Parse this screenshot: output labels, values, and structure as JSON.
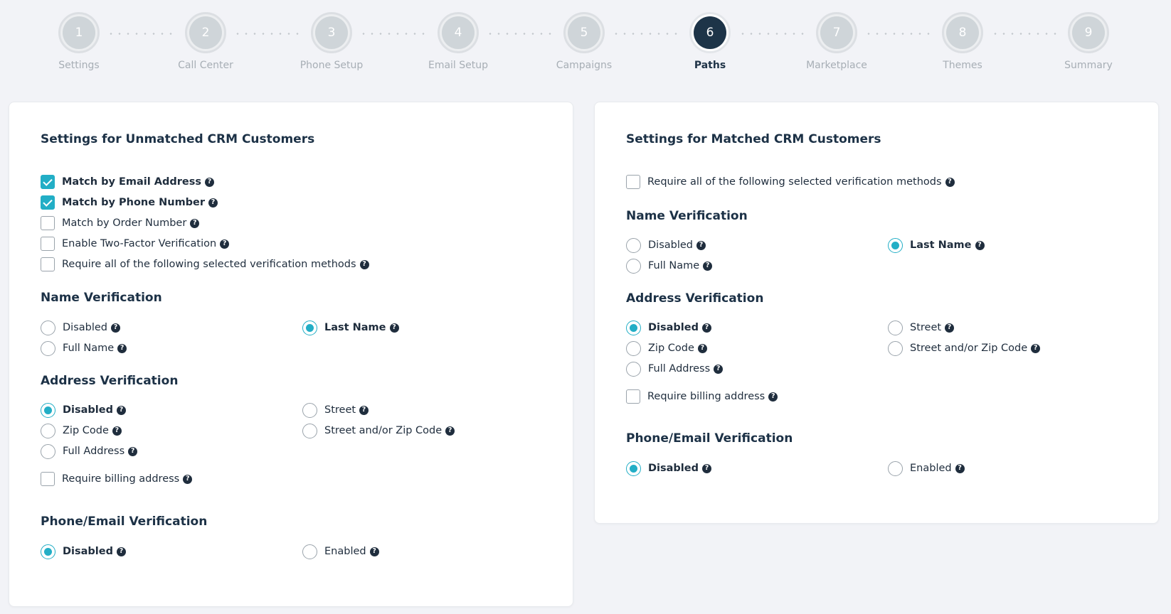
{
  "stepper": {
    "steps": [
      {
        "number": "1",
        "label": "Settings"
      },
      {
        "number": "2",
        "label": "Call Center"
      },
      {
        "number": "3",
        "label": "Phone Setup"
      },
      {
        "number": "4",
        "label": "Email Setup"
      },
      {
        "number": "5",
        "label": "Campaigns"
      },
      {
        "number": "6",
        "label": "Paths"
      },
      {
        "number": "7",
        "label": "Marketplace"
      },
      {
        "number": "8",
        "label": "Themes"
      },
      {
        "number": "9",
        "label": "Summary"
      }
    ],
    "active_step": 6
  },
  "help_glyph": "?",
  "colors": {
    "accent": "#22aec6",
    "active_step": "#1d3448",
    "background": "#f2f3f7"
  },
  "unmatched": {
    "title": "Settings for Unmatched CRM Customers",
    "match_options": [
      {
        "label": "Match by Email Address",
        "checked": true
      },
      {
        "label": "Match by Phone Number",
        "checked": true
      },
      {
        "label": "Match by Order Number",
        "checked": false
      },
      {
        "label": "Enable Two-Factor Verification",
        "checked": false
      },
      {
        "label": "Require all of the following selected verification methods",
        "checked": false
      }
    ],
    "name_verification": {
      "title": "Name Verification",
      "options": [
        {
          "label": "Disabled",
          "selected": false
        },
        {
          "label": "Last Name",
          "selected": true
        },
        {
          "label": "Full Name",
          "selected": false
        }
      ]
    },
    "address_verification": {
      "title": "Address Verification",
      "options": [
        {
          "label": "Disabled",
          "selected": true
        },
        {
          "label": "Street",
          "selected": false
        },
        {
          "label": "Zip Code",
          "selected": false
        },
        {
          "label": "Street and/or Zip Code",
          "selected": false
        },
        {
          "label": "Full Address",
          "selected": false
        }
      ],
      "billing": {
        "label": "Require billing address",
        "checked": false
      }
    },
    "phone_email_verification": {
      "title": "Phone/Email Verification",
      "options": [
        {
          "label": "Disabled",
          "selected": true
        },
        {
          "label": "Enabled",
          "selected": false
        }
      ]
    }
  },
  "matched": {
    "title": "Settings for Matched CRM Customers",
    "require_all": {
      "label": "Require all of the following selected verification methods",
      "checked": false
    },
    "name_verification": {
      "title": "Name Verification",
      "options": [
        {
          "label": "Disabled",
          "selected": false
        },
        {
          "label": "Last Name",
          "selected": true
        },
        {
          "label": "Full Name",
          "selected": false
        }
      ]
    },
    "address_verification": {
      "title": "Address Verification",
      "options": [
        {
          "label": "Disabled",
          "selected": true
        },
        {
          "label": "Street",
          "selected": false
        },
        {
          "label": "Zip Code",
          "selected": false
        },
        {
          "label": "Street and/or Zip Code",
          "selected": false
        },
        {
          "label": "Full Address",
          "selected": false
        }
      ],
      "billing": {
        "label": "Require billing address",
        "checked": false
      }
    },
    "phone_email_verification": {
      "title": "Phone/Email Verification",
      "options": [
        {
          "label": "Disabled",
          "selected": true
        },
        {
          "label": "Enabled",
          "selected": false
        }
      ]
    }
  }
}
